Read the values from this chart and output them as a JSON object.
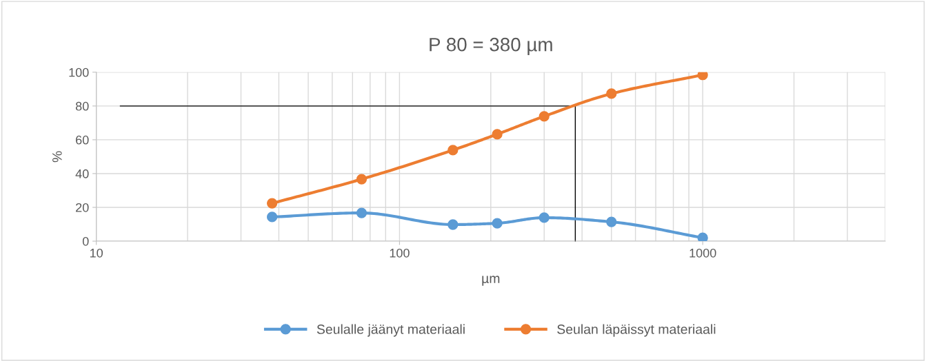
{
  "chart_data": {
    "type": "line",
    "title": "P 80 = 380 µm",
    "xlabel": "µm",
    "ylabel": "%",
    "log": "x",
    "xlim": [
      10,
      4000
    ],
    "xticks": [
      10,
      100,
      1000
    ],
    "ylim": [
      0,
      100
    ],
    "yticks": [
      0,
      20,
      40,
      60,
      80,
      100
    ],
    "grid": true,
    "legend": "bottom",
    "marker": "circle",
    "line_style": "solid",
    "series": [
      {
        "name": "Seulalle jäänyt materiaali",
        "color": "#5b9bd5",
        "x": [
          38,
          75,
          150,
          210,
          300,
          500,
          1000
        ],
        "values": [
          14.3,
          16.7,
          9.8,
          10.6,
          13.9,
          11.4,
          2
        ]
      },
      {
        "name": "Seulan läpäissyt materiaali",
        "color": "#ed7d31",
        "x": [
          38,
          75,
          150,
          210,
          300,
          500,
          1000
        ],
        "values": [
          22.4,
          36.7,
          53.9,
          63.3,
          73.9,
          87.3,
          98.4
        ]
      },
      {
        "type": "line",
        "color": "#000000",
        "x": [
          12,
          380,
          380
        ],
        "values": [
          80,
          80,
          0
        ],
        "marker": "none"
      }
    ]
  }
}
